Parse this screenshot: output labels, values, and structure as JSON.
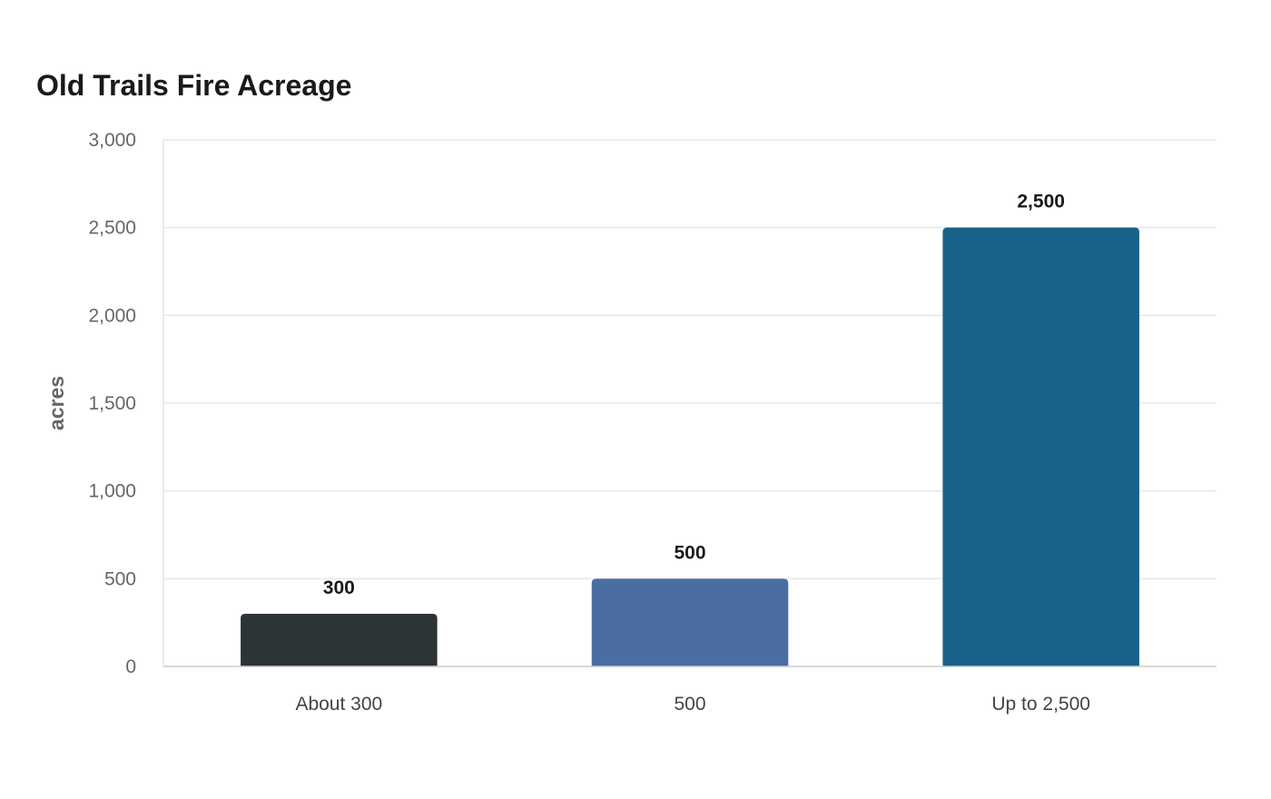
{
  "chart_data": {
    "type": "bar",
    "title": "Old Trails Fire Acreage",
    "xlabel": "",
    "ylabel": "acres",
    "categories": [
      "About 300",
      "500",
      "Up to 2,500"
    ],
    "values": [
      300,
      500,
      2500
    ],
    "value_labels": [
      "300",
      "500",
      "2,500"
    ],
    "colors": [
      "#2d3436",
      "#4a6ea1",
      "#186188"
    ],
    "ylim": [
      0,
      3000
    ],
    "yticks": [
      0,
      500,
      1000,
      1500,
      2000,
      2500,
      3000
    ],
    "ytick_labels": [
      "0",
      "500",
      "1,000",
      "1,500",
      "2,000",
      "2,500",
      "3,000"
    ],
    "grid": true,
    "legend": "none"
  }
}
